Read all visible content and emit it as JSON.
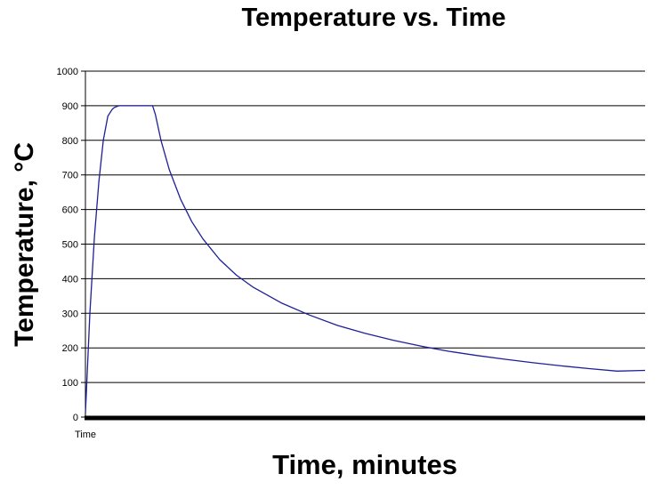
{
  "chart_data": {
    "type": "line",
    "title": "Temperature vs. Time",
    "xlabel": "Time, minutes",
    "ylabel": "Temperature, °C",
    "x_tick_labels": [
      "Time"
    ],
    "x_tick_values": [
      0
    ],
    "y_ticks": [
      0,
      100,
      200,
      300,
      400,
      500,
      600,
      700,
      800,
      900,
      1000
    ],
    "ylim": [
      0,
      1000
    ],
    "xlim": [
      0,
      100
    ],
    "grid": "horizontal",
    "legend": "none",
    "series": [
      {
        "color": "#1f1f99",
        "x": [
          0,
          0.8,
          1.6,
          2.4,
          3.2,
          4.0,
          4.8,
          5.2,
          6.0,
          8.0,
          10.0,
          12.0,
          12.5,
          13.5,
          15,
          17,
          19,
          21,
          24,
          27,
          30,
          35,
          40,
          45,
          50,
          55,
          60,
          65,
          70,
          75,
          80,
          85,
          90,
          95,
          100
        ],
        "y": [
          10,
          300,
          520,
          680,
          800,
          870,
          890,
          895,
          900,
          900,
          900,
          900,
          875,
          800,
          715,
          630,
          565,
          515,
          455,
          410,
          375,
          330,
          295,
          265,
          242,
          222,
          205,
          190,
          178,
          167,
          157,
          148,
          140,
          133,
          135
        ]
      }
    ]
  },
  "colors": {
    "axis": "#000000",
    "grid": "#000000",
    "line": "#1f1f99",
    "background": "#ffffff"
  }
}
